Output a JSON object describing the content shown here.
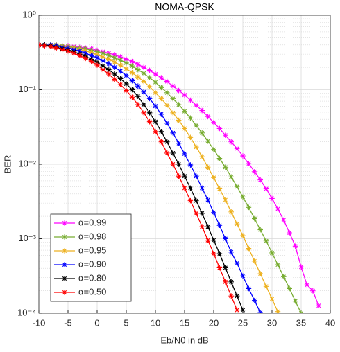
{
  "chart_data": {
    "type": "line",
    "title": "NOMA-QPSK",
    "x_label": "Eb/N0 in dB",
    "y_label": "BER",
    "log_y": true,
    "grid": true,
    "minor_grid": true,
    "legend": "southwest",
    "x": [
      -10,
      -9,
      -8,
      -7,
      -6,
      -5,
      -4,
      -3,
      -2,
      -1,
      0,
      1,
      2,
      3,
      4,
      5,
      6,
      7,
      8,
      9,
      10,
      11,
      12,
      13,
      14,
      15,
      16,
      17,
      18,
      19,
      20,
      21,
      22,
      23,
      24,
      25,
      26,
      27,
      28,
      29,
      30,
      31,
      32,
      33,
      34,
      35,
      36,
      37,
      38
    ],
    "xlim": [
      -10,
      40
    ],
    "xticks": [
      -10,
      -5,
      0,
      5,
      10,
      15,
      20,
      25,
      30,
      35,
      40
    ],
    "ylim": [
      0.0001,
      1
    ],
    "yticks": [
      {
        "value": 1,
        "label": "10⁰"
      },
      {
        "value": 0.1,
        "label": "10⁻¹"
      },
      {
        "value": 0.01,
        "label": "10⁻²"
      },
      {
        "value": 0.001,
        "label": "10⁻³"
      },
      {
        "value": 0.0001,
        "label": "10⁻⁴"
      }
    ],
    "yminorticks": [
      0.2,
      0.3,
      0.4,
      0.5,
      0.6,
      0.7,
      0.8,
      0.9,
      0.02,
      0.03,
      0.04,
      0.05,
      0.06,
      0.07,
      0.08,
      0.09,
      0.002,
      0.003,
      0.004,
      0.005,
      0.006,
      0.007,
      0.008,
      0.009,
      0.0002,
      0.0003,
      0.0004,
      0.0005,
      0.0006,
      0.0007,
      0.0008,
      0.0009
    ],
    "series": [
      {
        "name": "α=0.99",
        "color": "#ff00ff",
        "values": [
          0.398,
          0.398,
          0.398,
          0.398,
          0.389,
          0.389,
          0.38,
          0.372,
          0.363,
          0.355,
          0.339,
          0.324,
          0.309,
          0.295,
          0.275,
          0.257,
          0.24,
          0.219,
          0.2,
          0.182,
          0.162,
          0.145,
          0.129,
          0.112,
          0.0977,
          0.0851,
          0.0724,
          0.0617,
          0.0525,
          0.0437,
          0.0363,
          0.0302,
          0.0245,
          0.02,
          0.0162,
          0.0129,
          0.0102,
          0.00794,
          0.00617,
          0.00468,
          0.00347,
          0.00251,
          0.00178,
          0.0012,
          0.000794,
          0.000417,
          0.00024,
          0.0002,
          0.000126
        ]
      },
      {
        "name": "α=0.98",
        "color": "#77ac30",
        "values": [
          0.398,
          0.398,
          0.398,
          0.398,
          0.389,
          0.38,
          0.372,
          0.363,
          0.355,
          0.339,
          0.324,
          0.309,
          0.288,
          0.269,
          0.251,
          0.229,
          0.209,
          0.186,
          0.166,
          0.145,
          0.126,
          0.107,
          0.0912,
          0.0759,
          0.0631,
          0.0513,
          0.0417,
          0.0331,
          0.0263,
          0.0204,
          0.0158,
          0.012,
          0.00912,
          0.00676,
          0.00501,
          0.00363,
          0.00263,
          0.00186,
          0.00132,
          0.000933,
          0.000646,
          0.000447,
          0.000309,
          0.000214,
          0.000145,
          0.0001,
          null,
          null,
          null
        ]
      },
      {
        "name": "α=0.95",
        "color": "#edb120",
        "values": [
          0.398,
          0.398,
          0.398,
          0.389,
          0.38,
          0.372,
          0.363,
          0.347,
          0.331,
          0.316,
          0.295,
          0.275,
          0.257,
          0.234,
          0.214,
          0.191,
          0.17,
          0.148,
          0.129,
          0.11,
          0.0912,
          0.0759,
          0.0617,
          0.049,
          0.0389,
          0.0302,
          0.0229,
          0.017,
          0.0126,
          0.00912,
          0.00661,
          0.00468,
          0.00331,
          0.00229,
          0.00158,
          0.0011,
          0.000741,
          0.000501,
          0.000339,
          0.000229,
          0.000155,
          0.000105,
          null,
          null,
          null,
          null,
          null,
          null,
          null
        ]
      },
      {
        "name": "α=0.90",
        "color": "#0000ff",
        "values": [
          0.398,
          0.398,
          0.398,
          0.389,
          0.372,
          0.363,
          0.347,
          0.331,
          0.309,
          0.288,
          0.269,
          0.245,
          0.224,
          0.2,
          0.178,
          0.155,
          0.132,
          0.112,
          0.0933,
          0.0759,
          0.0603,
          0.0468,
          0.0355,
          0.0263,
          0.0191,
          0.0138,
          0.00977,
          0.00692,
          0.00479,
          0.00331,
          0.00224,
          0.00151,
          0.001,
          0.000661,
          0.000468,
          0.000316,
          0.000214,
          0.000148,
          0.000102,
          null,
          null,
          null,
          null,
          null,
          null,
          null,
          null,
          null,
          null
        ]
      },
      {
        "name": "α=0.80",
        "color": "#000000",
        "values": [
          0.398,
          0.398,
          0.389,
          0.372,
          0.355,
          0.339,
          0.324,
          0.302,
          0.282,
          0.257,
          0.234,
          0.209,
          0.186,
          0.162,
          0.141,
          0.12,
          0.1,
          0.0813,
          0.0631,
          0.049,
          0.0372,
          0.0275,
          0.02,
          0.0141,
          0.01,
          0.00692,
          0.00479,
          0.00324,
          0.00219,
          0.00145,
          0.000955,
          0.000631,
          0.000407,
          0.000263,
          0.00017,
          0.00011,
          null,
          null,
          null,
          null,
          null,
          null,
          null,
          null,
          null,
          null,
          null,
          null,
          null
        ]
      },
      {
        "name": "α=0.50",
        "color": "#ff0000",
        "values": [
          0.398,
          0.389,
          0.38,
          0.363,
          0.347,
          0.331,
          0.309,
          0.288,
          0.263,
          0.24,
          0.214,
          0.186,
          0.162,
          0.138,
          0.117,
          0.0977,
          0.0794,
          0.0631,
          0.049,
          0.0372,
          0.0275,
          0.02,
          0.0141,
          0.01,
          0.00692,
          0.00479,
          0.00324,
          0.00219,
          0.00145,
          0.000955,
          0.000631,
          0.000407,
          0.000263,
          0.00017,
          0.00011,
          null,
          null,
          null,
          null,
          null,
          null,
          null,
          null,
          null,
          null,
          null,
          null,
          null,
          null
        ]
      }
    ]
  }
}
